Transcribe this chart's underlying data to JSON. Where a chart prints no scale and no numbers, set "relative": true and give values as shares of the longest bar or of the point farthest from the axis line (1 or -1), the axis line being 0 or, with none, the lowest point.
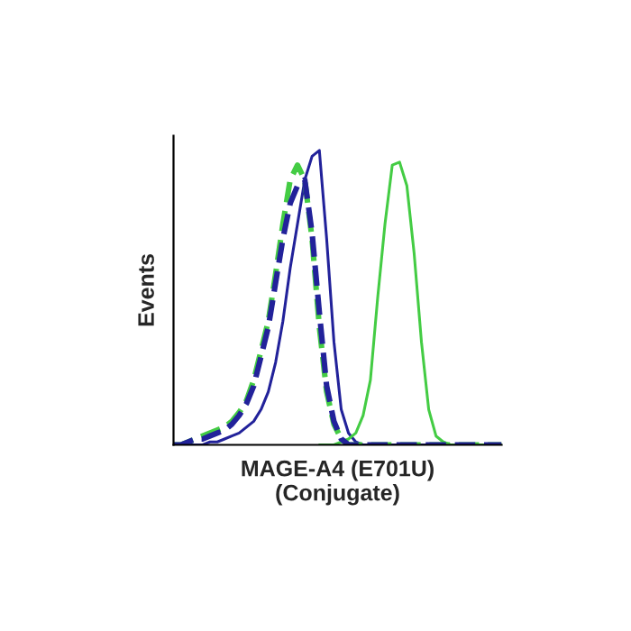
{
  "chart_data": {
    "type": "line",
    "relative": true,
    "ylabel": "Events",
    "xlabel": "MAGE-A4 (E701U)\n(Conjugate)",
    "tick_labels": false,
    "legend": false,
    "categories": [
      null,
      null,
      null,
      null,
      null,
      null,
      null,
      null,
      null,
      null,
      null,
      null,
      null,
      null,
      null,
      null,
      null,
      null,
      null,
      null,
      null,
      null,
      null,
      null,
      null,
      null,
      null,
      null,
      null,
      null,
      null,
      null,
      null,
      null,
      null,
      null,
      null,
      null,
      null,
      null,
      null,
      null,
      null,
      null,
      null,
      null
    ],
    "series": [
      {
        "color": "#22229a",
        "line_style": "solid",
        "values": [
          0,
          0,
          0,
          0,
          0,
          0.01,
          0.01,
          0.02,
          0.03,
          0.04,
          0.06,
          0.08,
          0.12,
          0.18,
          0.28,
          0.42,
          0.6,
          0.75,
          0.9,
          0.98,
          1,
          0.7,
          0.35,
          0.12,
          0.04,
          0.01,
          0,
          0,
          0,
          0,
          0,
          0,
          0,
          0,
          0,
          0,
          0,
          0,
          0,
          0,
          0,
          0,
          0,
          0,
          0,
          0
        ]
      },
      {
        "color": "#44cc44",
        "line_style": "solid",
        "values": [
          null,
          null,
          null,
          null,
          null,
          null,
          null,
          null,
          null,
          null,
          null,
          null,
          null,
          null,
          null,
          null,
          null,
          null,
          null,
          null,
          0,
          0,
          0,
          0.01,
          0.02,
          0.04,
          0.1,
          0.22,
          0.5,
          0.75,
          0.95,
          0.96,
          0.88,
          0.65,
          0.35,
          0.12,
          0.03,
          0.01,
          0,
          0,
          0,
          0,
          0,
          0,
          0,
          0
        ]
      },
      {
        "color": "#44cc44",
        "line_style": "dashed",
        "values": [
          0,
          0,
          0.01,
          0.02,
          0.03,
          0.04,
          0.05,
          0.06,
          0.08,
          0.11,
          0.15,
          0.22,
          0.32,
          0.42,
          0.58,
          0.75,
          0.9,
          0.95,
          0.9,
          0.7,
          0.4,
          0.18,
          0.07,
          0.02,
          0,
          0,
          0,
          0,
          0,
          0,
          0,
          0,
          0,
          0,
          0,
          0,
          0,
          0,
          0,
          0,
          0,
          0,
          0,
          0,
          0,
          0
        ]
      },
      {
        "color": "#22229a",
        "line_style": "dashed",
        "values": [
          0,
          0,
          0.01,
          0.02,
          0.02,
          0.03,
          0.04,
          0.05,
          0.07,
          0.1,
          0.14,
          0.2,
          0.3,
          0.4,
          0.55,
          0.7,
          0.82,
          0.88,
          0.9,
          0.72,
          0.45,
          0.2,
          0.08,
          0.02,
          0,
          0,
          0,
          0,
          0,
          0,
          0,
          0,
          0,
          0,
          0,
          0,
          0,
          0,
          0,
          0,
          0,
          0,
          0,
          0,
          0,
          0
        ]
      }
    ]
  }
}
